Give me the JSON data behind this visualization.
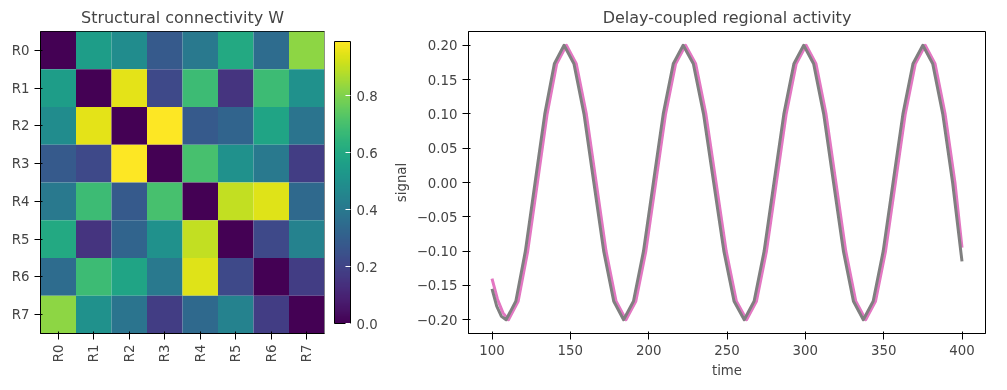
{
  "chart_data": [
    {
      "type": "heatmap",
      "title": "Structural connectivity W",
      "categories": [
        "R0",
        "R1",
        "R2",
        "R3",
        "R4",
        "R5",
        "R6",
        "R7"
      ],
      "y_categories": [
        "R0",
        "R1",
        "R2",
        "R3",
        "R4",
        "R5",
        "R6",
        "R7"
      ],
      "cells": [
        [
          0,
          0.55,
          0.48,
          0.28,
          0.4,
          0.6,
          0.35,
          0.82
        ],
        [
          0.55,
          0,
          0.95,
          0.22,
          0.68,
          0.15,
          0.68,
          0.5
        ],
        [
          0.48,
          0.95,
          0,
          0.99,
          0.28,
          0.32,
          0.58,
          0.38
        ],
        [
          0.28,
          0.22,
          0.99,
          0,
          0.7,
          0.5,
          0.4,
          0.18
        ],
        [
          0.4,
          0.68,
          0.28,
          0.7,
          0,
          0.9,
          0.94,
          0.34
        ],
        [
          0.6,
          0.15,
          0.32,
          0.5,
          0.9,
          0,
          0.22,
          0.44
        ],
        [
          0.35,
          0.68,
          0.58,
          0.4,
          0.94,
          0.22,
          0,
          0.18
        ],
        [
          0.82,
          0.5,
          0.38,
          0.18,
          0.34,
          0.44,
          0.18,
          0
        ]
      ],
      "clim": [
        0,
        0.99
      ],
      "cticks": [
        {
          "value": 0,
          "label": "0.0"
        },
        0.2,
        0.4,
        0.6,
        0.8
      ]
    },
    {
      "type": "line",
      "title": "Delay-coupled regional activity",
      "xlabel": "time",
      "ylabel": "signal",
      "xlim": [
        85,
        415
      ],
      "ylim": [
        -0.22,
        0.22
      ],
      "xticks": [
        100,
        150,
        200,
        250,
        300,
        350,
        400
      ],
      "yticks": [
        {
          "value": 0.2,
          "label": "0.20"
        },
        {
          "value": 0.15,
          "label": "0.15"
        },
        {
          "value": 0.1,
          "label": "0.10"
        },
        {
          "value": 0.05,
          "label": "0.05"
        },
        {
          "value": 0,
          "label": "0.00"
        },
        {
          "value": -0.05,
          "label": "−0.05"
        },
        {
          "value": -0.1,
          "label": "−0.10"
        },
        {
          "value": -0.15,
          "label": "−0.15"
        },
        {
          "value": -0.2,
          "label": "−0.20"
        }
      ],
      "grid": false,
      "series": [
        {
          "color": "#e377c2",
          "x": [
            100,
            103.5,
            107,
            110.5,
            116.7,
            122.8,
            129,
            135.2,
            141.3,
            147.5,
            153.8,
            160.2,
            166.5,
            172.8,
            179.2,
            185.5,
            191.8,
            198.2,
            204.5,
            210.8,
            217.2,
            223.5,
            230,
            236.5,
            243,
            249.5,
            256,
            262.5,
            268.8,
            275.2,
            281.5,
            287.8,
            294.2,
            300.5,
            306.8,
            313.2,
            319.5,
            325.8,
            332.2,
            338.5,
            344.8,
            351.2,
            357.5,
            363.8,
            370.2,
            376.5,
            382.8,
            389.2,
            395.5,
            400
          ],
          "values": [
            -0.14,
            -0.17,
            -0.19,
            -0.2,
            -0.173,
            -0.1,
            0,
            0.1,
            0.173,
            0.2,
            0.173,
            0.1,
            0,
            -0.1,
            -0.173,
            -0.2,
            -0.173,
            -0.1,
            0,
            0.1,
            0.173,
            0.2,
            0.173,
            0.1,
            0,
            -0.1,
            -0.173,
            -0.2,
            -0.173,
            -0.1,
            0,
            0.1,
            0.173,
            0.2,
            0.173,
            0.1,
            0,
            -0.1,
            -0.173,
            -0.2,
            -0.173,
            -0.1,
            0,
            0.1,
            0.173,
            0.2,
            0.173,
            0.1,
            0,
            -0.095
          ]
        },
        {
          "color": "#7f7f7f",
          "x": [
            100,
            103,
            106,
            109,
            115.2,
            121.3,
            127.5,
            133.7,
            139.8,
            146,
            152.3,
            158.7,
            165,
            171.3,
            177.7,
            184,
            190.3,
            196.7,
            203,
            209.3,
            215.7,
            222,
            228.5,
            235,
            241.5,
            248,
            254.5,
            261,
            267.3,
            273.7,
            280,
            286.3,
            292.7,
            299,
            305.3,
            311.7,
            318,
            324.3,
            330.7,
            337,
            343.3,
            349.7,
            356,
            362.3,
            368.7,
            375,
            381.3,
            387.7,
            394,
            400
          ],
          "values": [
            -0.155,
            -0.18,
            -0.195,
            -0.2,
            -0.173,
            -0.1,
            0,
            0.1,
            0.173,
            0.2,
            0.173,
            0.1,
            0,
            -0.1,
            -0.173,
            -0.2,
            -0.173,
            -0.1,
            0,
            0.1,
            0.173,
            0.2,
            0.173,
            0.1,
            0,
            -0.1,
            -0.173,
            -0.2,
            -0.173,
            -0.1,
            0,
            0.1,
            0.173,
            0.2,
            0.173,
            0.1,
            0,
            -0.1,
            -0.173,
            -0.2,
            -0.173,
            -0.1,
            0,
            0.1,
            0.173,
            0.2,
            0.173,
            0.1,
            0,
            -0.115
          ]
        }
      ]
    }
  ]
}
